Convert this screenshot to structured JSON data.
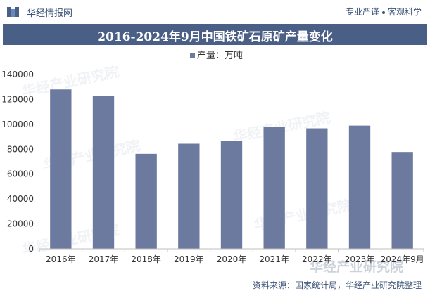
{
  "header": {
    "brand": "华经情报网",
    "motto_left": "专业严谨",
    "motto_right": "客观科学"
  },
  "title": "2016-2024年9月中国铁矿石原矿产量变化",
  "footer": "资料来源：国家统计局，华经产业研究院整理",
  "watermark": "华经产业研究院",
  "colors": {
    "bar": "#6b7a9e",
    "title_band": "#4a5f86",
    "text": "#3e5478"
  },
  "chart_data": {
    "type": "bar",
    "categories": [
      "2016年",
      "2017年",
      "2018年",
      "2019年",
      "2020年",
      "2021年",
      "2022年",
      "2023年",
      "2024年9月"
    ],
    "series": [
      {
        "name": "产量：万吨",
        "values": [
          128000,
          123000,
          76300,
          84400,
          86700,
          98100,
          96800,
          99000,
          77800
        ]
      }
    ],
    "ylim": [
      0,
      140000
    ],
    "yticks": [
      0,
      20000,
      40000,
      60000,
      80000,
      100000,
      120000,
      140000
    ],
    "legend": "top-center",
    "grid": false
  }
}
